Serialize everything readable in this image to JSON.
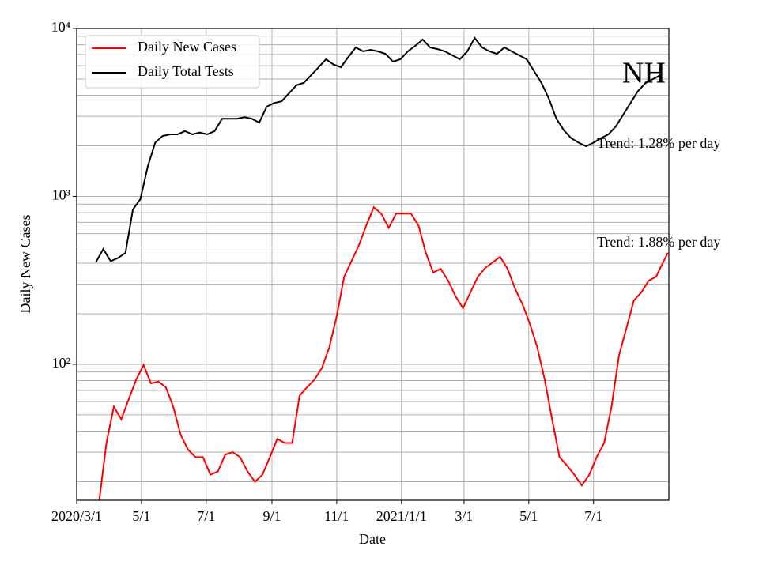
{
  "chart_data": {
    "type": "line",
    "x_label": "Date",
    "y_label": "Daily New Cases",
    "annotations": [
      "NH",
      "Trend: 1.28% per day",
      "Trend: 1.88% per day"
    ],
    "xlim": [
      "2020-03-01",
      "2021-09-10"
    ],
    "xticks": [
      {
        "value": "2020-03-01",
        "label": "2020/3/1"
      },
      {
        "value": "2020-05-01",
        "label": "5/1"
      },
      {
        "value": "2020-07-01",
        "label": "7/1"
      },
      {
        "value": "2020-09-01",
        "label": "9/1"
      },
      {
        "value": "2020-11-01",
        "label": "11/1"
      },
      {
        "value": "2021-01-01",
        "label": "2021/1/1"
      },
      {
        "value": "2021-03-01",
        "label": "3/1"
      },
      {
        "value": "2021-05-01",
        "label": "5/1"
      },
      {
        "value": "2021-07-01",
        "label": "7/1"
      }
    ],
    "ylim": [
      15.5,
      10000
    ],
    "log_y": true,
    "yticks": [
      {
        "value": 100,
        "label": "10²"
      },
      {
        "value": 1000,
        "label": "10³"
      },
      {
        "value": 10000,
        "label": "10⁴"
      }
    ],
    "grid": true,
    "minor_grid": true,
    "legend": "upper left",
    "series": [
      {
        "name": "Daily New Cases",
        "color": "#ff0000",
        "x": [
          "2020-03-22",
          "2020-03-29",
          "2020-04-05",
          "2020-04-12",
          "2020-04-19",
          "2020-04-26",
          "2020-05-03",
          "2020-05-10",
          "2020-05-17",
          "2020-05-24",
          "2020-05-31",
          "2020-06-07",
          "2020-06-14",
          "2020-06-21",
          "2020-06-28",
          "2020-07-05",
          "2020-07-12",
          "2020-07-19",
          "2020-07-26",
          "2020-08-02",
          "2020-08-09",
          "2020-08-16",
          "2020-08-23",
          "2020-08-30",
          "2020-09-06",
          "2020-09-13",
          "2020-09-20",
          "2020-09-27",
          "2020-10-04",
          "2020-10-11",
          "2020-10-18",
          "2020-10-25",
          "2020-11-01",
          "2020-11-08",
          "2020-11-15",
          "2020-11-22",
          "2020-11-29",
          "2020-12-06",
          "2020-12-13",
          "2020-12-20",
          "2020-12-27",
          "2021-01-03",
          "2021-01-10",
          "2021-01-17",
          "2021-01-24",
          "2021-01-31",
          "2021-02-07",
          "2021-02-14",
          "2021-02-21",
          "2021-02-28",
          "2021-03-07",
          "2021-03-14",
          "2021-03-21",
          "2021-03-28",
          "2021-04-04",
          "2021-04-11",
          "2021-04-18",
          "2021-04-25",
          "2021-05-02",
          "2021-05-09",
          "2021-05-16",
          "2021-05-23",
          "2021-05-30",
          "2021-06-06",
          "2021-06-13",
          "2021-06-20",
          "2021-06-27",
          "2021-07-04",
          "2021-07-11",
          "2021-07-18",
          "2021-07-25",
          "2021-08-01",
          "2021-08-08",
          "2021-08-15",
          "2021-08-22",
          "2021-08-29",
          "2021-09-09"
        ],
        "values": [
          15,
          34,
          56,
          47,
          62,
          81,
          99,
          77,
          79,
          73,
          56,
          38,
          31,
          28,
          28,
          22,
          23,
          29,
          30,
          28,
          23,
          20,
          22,
          28,
          36,
          34,
          34,
          65,
          73,
          81,
          95,
          126,
          194,
          333,
          413,
          514,
          674,
          863,
          790,
          650,
          790,
          790,
          790,
          674,
          461,
          352,
          370,
          315,
          254,
          216,
          268,
          333,
          375,
          405,
          437,
          370,
          283,
          228,
          174,
          126,
          81,
          47,
          28,
          25,
          22,
          19,
          22,
          28,
          34,
          56,
          113,
          164,
          240,
          268,
          315,
          333,
          461
        ]
      },
      {
        "name": "Daily Total Tests",
        "color": "#000000",
        "x": [
          "2020-03-19",
          "2020-03-26",
          "2020-04-02",
          "2020-04-09",
          "2020-04-16",
          "2020-04-23",
          "2020-04-30",
          "2020-05-07",
          "2020-05-14",
          "2020-05-21",
          "2020-05-28",
          "2020-06-04",
          "2020-06-11",
          "2020-06-18",
          "2020-06-25",
          "2020-07-02",
          "2020-07-09",
          "2020-07-16",
          "2020-07-23",
          "2020-07-30",
          "2020-08-06",
          "2020-08-13",
          "2020-08-20",
          "2020-08-27",
          "2020-09-03",
          "2020-09-10",
          "2020-09-17",
          "2020-09-24",
          "2020-10-01",
          "2020-10-08",
          "2020-10-15",
          "2020-10-22",
          "2020-10-29",
          "2020-11-05",
          "2020-11-12",
          "2020-11-19",
          "2020-11-26",
          "2020-12-03",
          "2020-12-10",
          "2020-12-17",
          "2020-12-24",
          "2020-12-31",
          "2021-01-07",
          "2021-01-14",
          "2021-01-21",
          "2021-01-28",
          "2021-02-04",
          "2021-02-11",
          "2021-02-18",
          "2021-02-25",
          "2021-03-04",
          "2021-03-11",
          "2021-03-18",
          "2021-03-25",
          "2021-04-01",
          "2021-04-08",
          "2021-04-15",
          "2021-04-22",
          "2021-04-29",
          "2021-05-06",
          "2021-05-13",
          "2021-05-20",
          "2021-05-27",
          "2021-06-03",
          "2021-06-10",
          "2021-06-17",
          "2021-06-24",
          "2021-07-01",
          "2021-07-08",
          "2021-07-15",
          "2021-07-22",
          "2021-07-29",
          "2021-08-05",
          "2021-08-12",
          "2021-08-19",
          "2021-08-26",
          "2021-09-02"
        ],
        "values": [
          405,
          486,
          411,
          430,
          461,
          836,
          963,
          1510,
          2090,
          2290,
          2340,
          2340,
          2450,
          2340,
          2400,
          2340,
          2450,
          2900,
          2900,
          2900,
          2960,
          2900,
          2750,
          3420,
          3600,
          3680,
          4110,
          4590,
          4750,
          5270,
          5880,
          6550,
          6100,
          5880,
          6770,
          7710,
          7300,
          7460,
          7300,
          7060,
          6350,
          6550,
          7300,
          7880,
          8590,
          7710,
          7540,
          7300,
          6920,
          6550,
          7300,
          8780,
          7710,
          7300,
          7060,
          7710,
          7300,
          6920,
          6550,
          5570,
          4730,
          3810,
          2900,
          2480,
          2220,
          2090,
          1990,
          2090,
          2220,
          2340,
          2610,
          3070,
          3610,
          4250,
          4730,
          5000,
          5270
        ]
      }
    ]
  }
}
